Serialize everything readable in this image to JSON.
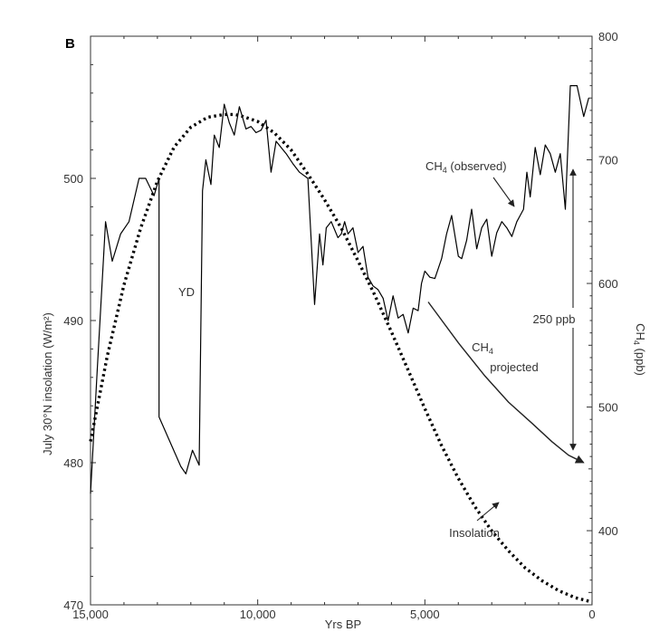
{
  "chart_data": {
    "type": "line",
    "panel_label": "B",
    "xlabel": "Yrs BP",
    "ylabel_left": "July 30°N insolation (W/m²)",
    "ylabel_right_main": "CH",
    "ylabel_right_sub": "4",
    "ylabel_right_rest": " (ppb)",
    "xlim": [
      15000,
      0
    ],
    "ylim_left": [
      470,
      510
    ],
    "ylim_right": [
      340,
      800
    ],
    "x_ticks": [
      {
        "value": 15000,
        "label": "15,000"
      },
      {
        "value": 10000,
        "label": "10,000"
      },
      {
        "value": 5000,
        "label": "5,000"
      },
      {
        "value": 0,
        "label": "0"
      }
    ],
    "y_left_ticks": [
      {
        "value": 470,
        "label": "470"
      },
      {
        "value": 480,
        "label": "480"
      },
      {
        "value": 490,
        "label": "490"
      },
      {
        "value": 500,
        "label": "500"
      }
    ],
    "y_right_ticks": [
      {
        "value": 400,
        "label": "400"
      },
      {
        "value": 500,
        "label": "500"
      },
      {
        "value": 600,
        "label": "600"
      },
      {
        "value": 700,
        "label": "700"
      },
      {
        "value": 800,
        "label": "800"
      }
    ],
    "series": [
      {
        "name": "Insolation",
        "axis": "left",
        "style": "dotted",
        "x": [
          15000,
          14500,
          14000,
          13500,
          13000,
          12500,
          12000,
          11500,
          11000,
          10700,
          10500,
          10000,
          9500,
          9000,
          8500,
          8000,
          7500,
          7000,
          6500,
          6000,
          5500,
          5000,
          4500,
          4000,
          3500,
          3000,
          2500,
          2000,
          1500,
          1000,
          500,
          0
        ],
        "values": [
          481.5,
          487.5,
          492.5,
          496.5,
          499.8,
          502.2,
          503.6,
          504.3,
          504.5,
          504.5,
          504.4,
          504.0,
          503.2,
          502.0,
          500.3,
          498.5,
          496.5,
          494.2,
          491.8,
          489.2,
          486.5,
          483.8,
          481.2,
          478.9,
          476.9,
          475.2,
          473.8,
          472.6,
          471.7,
          471.0,
          470.5,
          470.2
        ]
      },
      {
        "name": "CH4 (observed)",
        "axis": "right",
        "style": "solid",
        "x": [
          15000,
          14800,
          14550,
          14350,
          14100,
          13850,
          13550,
          13350,
          13100,
          12950,
          12950,
          12300,
          12150,
          11950,
          11750,
          11650,
          11550,
          11400,
          11300,
          11150,
          11000,
          10850,
          10700,
          10550,
          10350,
          10200,
          10050,
          9900,
          9750,
          9600,
          9450,
          9300,
          9150,
          8950,
          8750,
          8500,
          8300,
          8150,
          8050,
          7950,
          7800,
          7600,
          7500,
          7400,
          7300,
          7150,
          7000,
          6850,
          6700,
          6550,
          6400,
          6250,
          6100,
          5950,
          5800,
          5650,
          5500,
          5350,
          5200,
          5100,
          5000,
          4850,
          4700,
          4500,
          4350,
          4200,
          4000,
          3900,
          3750,
          3600,
          3450,
          3300,
          3150,
          3000,
          2850,
          2700,
          2550,
          2400,
          2250,
          2150,
          2050,
          1950,
          1850,
          1700,
          1550,
          1400,
          1250,
          1100,
          950,
          800,
          650,
          450,
          250,
          100
        ],
        "values": [
          430,
          530,
          650,
          618,
          640,
          650,
          685,
          685,
          671,
          685,
          492,
          452,
          446,
          465,
          453,
          675,
          700,
          680,
          720,
          710,
          745,
          730,
          720,
          743,
          725,
          727,
          722,
          724,
          732,
          690,
          715,
          710,
          705,
          697,
          690,
          685,
          583,
          640,
          615,
          645,
          650,
          637,
          640,
          650,
          640,
          645,
          625,
          630,
          605,
          598,
          595,
          588,
          570,
          590,
          572,
          575,
          560,
          580,
          578,
          600,
          610,
          605,
          604,
          620,
          640,
          655,
          622,
          620,
          635,
          660,
          628,
          645,
          652,
          622,
          641,
          650,
          645,
          638,
          650,
          655,
          660,
          690,
          670,
          710,
          688,
          712,
          705,
          690,
          705,
          660,
          760,
          760,
          735,
          750
        ]
      },
      {
        "name": "CH4 projected",
        "axis": "right",
        "style": "solid",
        "x": [
          4900,
          4000,
          3200,
          2500,
          1800,
          1200,
          700,
          250
        ],
        "values": [
          585,
          552,
          525,
          504,
          487,
          472,
          461,
          455
        ]
      }
    ],
    "annotations": {
      "yd": "YD",
      "ch4_observed_main": "CH",
      "ch4_observed_sub": "4",
      "ch4_observed_rest": " (observed)",
      "ch4_projected_main": "CH",
      "ch4_projected_sub": "4",
      "ch4_projected_rest": "projected",
      "insolation": "Insolation",
      "ppb_gap": "250 ppb"
    }
  }
}
